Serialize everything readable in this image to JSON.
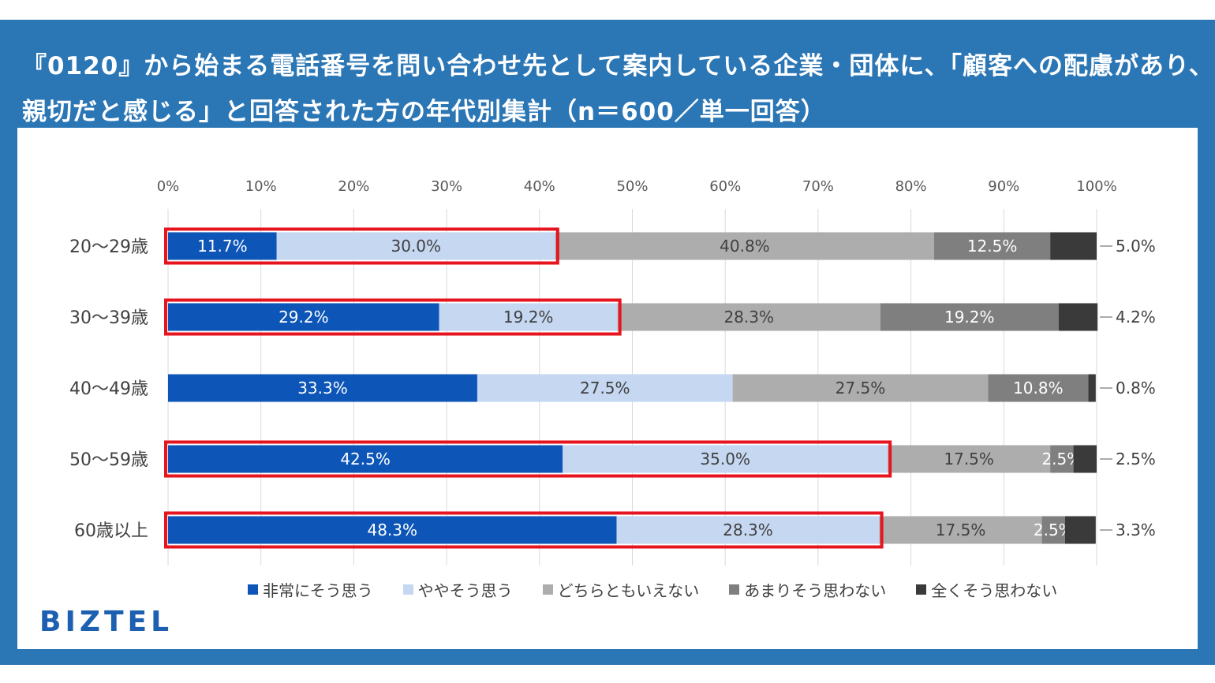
{
  "title": {
    "line1": "『0120』から始まる電話番号を問い合わせ先として案内している企業・団体に、「顧客への配慮があり、",
    "line2": "親切だと感じる」と回答された方の年代別集計（n＝600／単一回答）"
  },
  "brand": "BIZTEL",
  "chart_data": {
    "type": "bar",
    "orientation": "horizontal",
    "stacked": true,
    "percent_stacked": true,
    "title": "",
    "xlim": [
      0,
      100
    ],
    "x_ticks": [
      "0%",
      "10%",
      "20%",
      "30%",
      "40%",
      "50%",
      "60%",
      "70%",
      "80%",
      "90%",
      "100%"
    ],
    "grid": true,
    "legend_position": "bottom",
    "categories": [
      "20〜29歳",
      "30〜39歳",
      "40〜49歳",
      "50〜59歳",
      "60歳以上"
    ],
    "series": [
      {
        "name": "非常にそう思う",
        "color": "#0d56b8",
        "label_color": "#ffffff",
        "values": [
          11.7,
          29.2,
          33.3,
          42.5,
          48.3
        ],
        "labels": [
          "11.7%",
          "29.2%",
          "33.3%",
          "42.5%",
          "48.3%"
        ]
      },
      {
        "name": "ややそう思う",
        "color": "#c5d7f1",
        "label_color": "#404040",
        "values": [
          30.0,
          19.2,
          27.5,
          35.0,
          28.3
        ],
        "labels": [
          "30.0%",
          "19.2%",
          "27.5%",
          "35.0%",
          "28.3%"
        ]
      },
      {
        "name": "どちらともいえない",
        "color": "#adadad",
        "label_color": "#404040",
        "values": [
          40.8,
          28.3,
          27.5,
          17.5,
          17.5
        ],
        "labels": [
          "40.8%",
          "28.3%",
          "27.5%",
          "17.5%",
          "17.5%"
        ]
      },
      {
        "name": "あまりそう思わない",
        "color": "#7f7f7f",
        "label_color": "#ffffff",
        "values": [
          12.5,
          19.2,
          10.8,
          2.5,
          2.5
        ],
        "labels": [
          "12.5%",
          "19.2%",
          "10.8%",
          "2.5%",
          "2.5%"
        ]
      },
      {
        "name": "全くそう思わない",
        "color": "#3a3a3a",
        "label_color": "#404040",
        "values": [
          5.0,
          4.2,
          0.8,
          2.5,
          3.3
        ],
        "labels": [
          "5.0%",
          "4.2%",
          "0.8%",
          "2.5%",
          "3.3%"
        ]
      }
    ],
    "highlight": {
      "color": "#e5141e",
      "rows": [
        0,
        1,
        3,
        4
      ],
      "description_series": [
        "非常にそう思う",
        "ややそう思う"
      ]
    }
  }
}
